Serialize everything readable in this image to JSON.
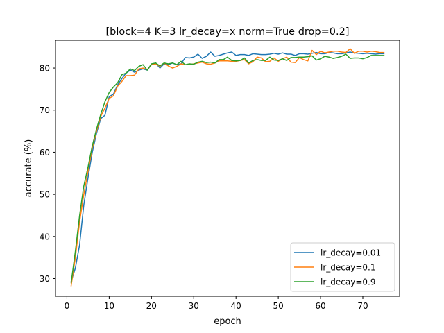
{
  "chart_data": {
    "type": "line",
    "title": "[block=4 K=3 lr_decay=x norm=True drop=0.2]",
    "xlabel": "epoch",
    "ylabel": "accurate (%)",
    "xlim": [
      -2.7,
      78.7
    ],
    "ylim": [
      25.8,
      86.6
    ],
    "xticks": [
      0,
      10,
      20,
      30,
      40,
      50,
      60,
      70
    ],
    "yticks": [
      30,
      40,
      50,
      60,
      70,
      80
    ],
    "grid": false,
    "legend_position": "lower-right",
    "x": [
      1,
      2,
      3,
      4,
      5,
      6,
      7,
      8,
      9,
      10,
      11,
      12,
      13,
      14,
      15,
      16,
      17,
      18,
      19,
      20,
      21,
      22,
      23,
      24,
      25,
      26,
      27,
      28,
      29,
      30,
      31,
      32,
      33,
      34,
      35,
      36,
      37,
      38,
      39,
      40,
      41,
      42,
      43,
      44,
      45,
      46,
      47,
      48,
      49,
      50,
      51,
      52,
      53,
      54,
      55,
      56,
      57,
      58,
      59,
      60,
      61,
      62,
      63,
      64,
      65,
      66,
      67,
      68,
      69,
      70,
      71,
      72,
      73,
      74,
      75
    ],
    "series": [
      {
        "name": "lr_decay=0.01",
        "color": "#1f77b4",
        "values": [
          29.3,
          32.5,
          38.0,
          47.5,
          54.0,
          60.0,
          64.5,
          68.0,
          68.8,
          73.2,
          73.8,
          76.0,
          77.5,
          78.8,
          79.5,
          79.0,
          79.5,
          79.8,
          79.5,
          80.8,
          81.2,
          80.0,
          81.0,
          80.8,
          81.2,
          80.8,
          81.0,
          82.5,
          82.4,
          82.6,
          83.3,
          82.3,
          82.8,
          83.8,
          82.8,
          83.0,
          83.3,
          83.6,
          83.8,
          83.0,
          83.2,
          83.2,
          83.0,
          83.4,
          83.3,
          83.2,
          83.2,
          83.3,
          83.5,
          83.3,
          83.6,
          83.3,
          83.3,
          83.0,
          83.4,
          83.4,
          83.3,
          83.5,
          83.7,
          83.4,
          83.4,
          83.7,
          83.6,
          83.4,
          83.4,
          83.6,
          83.8,
          83.6,
          83.5,
          83.4,
          83.5,
          83.4,
          83.3,
          83.4,
          83.4
        ]
      },
      {
        "name": "lr_decay=0.1",
        "color": "#ff7f0e",
        "values": [
          28.3,
          35.0,
          43.5,
          50.0,
          55.5,
          61.0,
          65.0,
          68.5,
          70.5,
          72.8,
          73.4,
          75.7,
          76.8,
          78.2,
          78.2,
          78.3,
          79.8,
          80.0,
          79.6,
          80.8,
          81.0,
          80.4,
          81.2,
          80.5,
          80.0,
          80.4,
          81.0,
          80.8,
          80.8,
          81.0,
          81.2,
          81.4,
          81.0,
          80.9,
          81.2,
          81.7,
          81.7,
          81.7,
          81.6,
          81.6,
          81.8,
          82.0,
          81.0,
          81.5,
          82.6,
          82.4,
          81.5,
          81.6,
          82.4,
          81.6,
          82.2,
          82.6,
          81.4,
          81.3,
          82.5,
          82.0,
          81.7,
          84.2,
          83.2,
          84.0,
          83.6,
          83.8,
          84.0,
          84.0,
          83.8,
          83.7,
          84.6,
          83.5,
          84.0,
          84.0,
          83.8,
          84.0,
          83.9,
          83.7,
          83.7
        ]
      },
      {
        "name": "lr_decay=0.9",
        "color": "#2ca02c",
        "values": [
          29.0,
          36.5,
          45.0,
          52.0,
          56.5,
          61.5,
          65.5,
          69.0,
          72.0,
          74.2,
          75.5,
          76.5,
          78.4,
          78.8,
          79.8,
          79.4,
          80.4,
          80.8,
          79.5,
          81.0,
          81.2,
          80.5,
          81.2,
          81.0,
          81.2,
          80.8,
          81.6,
          80.8,
          81.0,
          80.9,
          81.4,
          81.6,
          81.3,
          81.4,
          81.2,
          82.0,
          82.0,
          82.6,
          81.8,
          81.7,
          81.8,
          82.4,
          81.2,
          81.8,
          82.0,
          81.8,
          81.8,
          82.6,
          81.9,
          81.8,
          82.2,
          81.8,
          82.5,
          82.5,
          82.6,
          82.6,
          82.7,
          82.9,
          81.9,
          82.2,
          82.8,
          82.6,
          82.3,
          82.5,
          82.8,
          83.3,
          82.3,
          82.4,
          82.4,
          82.2,
          82.5,
          83.0,
          83.0,
          83.0,
          83.0
        ]
      }
    ]
  }
}
